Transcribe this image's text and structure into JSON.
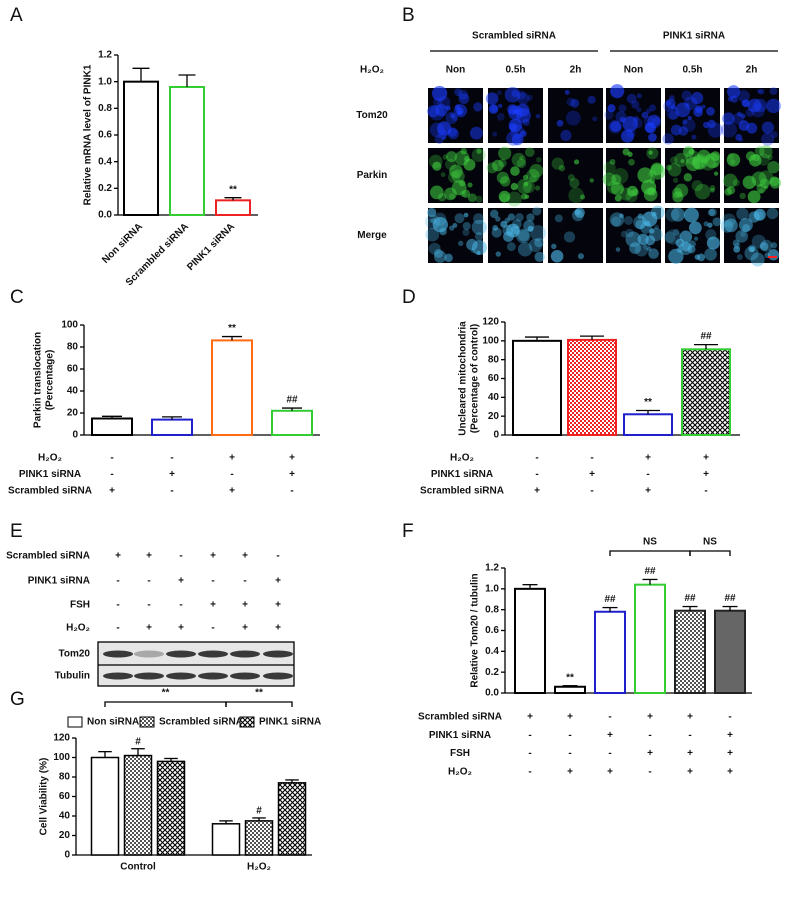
{
  "microscopy": {
    "panel": "B",
    "groups": [
      "Scrambled siRNA",
      "PINK1 siRNA"
    ],
    "treatment_label": "H₂O₂",
    "timepoints": [
      "Non",
      "0.5h",
      "2h",
      "Non",
      "0.5h",
      "2h"
    ],
    "rows": [
      "Tom20",
      "Parkin",
      "Merge"
    ]
  },
  "blot": {
    "panel": "E",
    "conditions": [
      {
        "name": "Scrambled siRNA",
        "values": [
          "+",
          "+",
          "-",
          "+",
          "+",
          "-"
        ]
      },
      {
        "name": "PINK1 siRNA",
        "values": [
          "-",
          "-",
          "+",
          "-",
          "-",
          "+"
        ]
      },
      {
        "name": "FSH",
        "values": [
          "-",
          "-",
          "-",
          "+",
          "+",
          "+"
        ]
      },
      {
        "name": "H₂O₂",
        "values": [
          "-",
          "+",
          "+",
          "-",
          "+",
          "+"
        ]
      }
    ],
    "bands": [
      "Tom20",
      "Tubulin"
    ]
  },
  "chart_data": [
    {
      "type": "bar",
      "panel": "A",
      "ylabel": "Relative mRNA level of PINK1",
      "categories": [
        "Non siRNA",
        "Scrambled siRNA",
        "PINK1 siRNA"
      ],
      "values": [
        1.0,
        0.96,
        0.11
      ],
      "errors": [
        0.1,
        0.09,
        0.02
      ],
      "colors": [
        "#000000",
        "#33cc33",
        "#ee2222"
      ],
      "fills": [
        "white",
        "white",
        "white"
      ],
      "fill_colors": [
        "#ffffff",
        "#ffffff",
        "#ffffff"
      ],
      "annotations": [
        null,
        null,
        "**"
      ],
      "ylim": [
        0,
        1.2
      ],
      "yticks": [
        {
          "value": 0,
          "label": "0.0"
        },
        0.2,
        0.4,
        0.6,
        0.8,
        {
          "value": 1,
          "label": "1.0"
        },
        1.2
      ]
    },
    {
      "type": "bar",
      "panel": "C",
      "ylabel": [
        "Parkin translocation",
        "(Percentage)"
      ],
      "values": [
        15,
        14,
        86,
        22
      ],
      "errors": [
        2,
        2.5,
        3.5,
        2.5
      ],
      "colors": [
        "#000000",
        "#1f1fcc",
        "#ff6a13",
        "#33cc33"
      ],
      "fills": [
        "white",
        "white",
        "white",
        "white"
      ],
      "fill_colors": [
        "#ffffff",
        "#ffffff",
        "#ffffff",
        "#ffffff"
      ],
      "annotations": [
        null,
        null,
        "**",
        "##"
      ],
      "conditions": [
        {
          "name": "H₂O₂",
          "values": [
            "-",
            "-",
            "+",
            "+"
          ]
        },
        {
          "name": "PINK1 siRNA",
          "values": [
            "-",
            "+",
            "-",
            "+"
          ]
        },
        {
          "name": "Scrambled siRNA",
          "values": [
            "+",
            "-",
            "+",
            "-"
          ]
        }
      ],
      "ylim": [
        0,
        100
      ],
      "yticks": [
        0,
        20,
        40,
        60,
        80,
        100
      ]
    },
    {
      "type": "bar",
      "panel": "D",
      "ylabel": [
        "Uncleared mitochondria",
        "(Percentage of control)"
      ],
      "values": [
        100,
        101,
        22,
        91
      ],
      "errors": [
        4,
        4,
        4,
        5
      ],
      "colors": [
        "#000000",
        "#ee2222",
        "#1f1fcc",
        "#33cc33"
      ],
      "fills": [
        "white",
        "checker",
        "white",
        "crosshatch"
      ],
      "fill_colors": [
        "#ffffff",
        "#ee2222",
        "#ffffff",
        "#000000"
      ],
      "annotations": [
        null,
        null,
        "**",
        "##"
      ],
      "conditions": [
        {
          "name": "H₂O₂",
          "values": [
            "-",
            "-",
            "+",
            "+"
          ]
        },
        {
          "name": "PINK1 siRNA",
          "values": [
            "-",
            "+",
            "-",
            "+"
          ]
        },
        {
          "name": "Scrambled siRNA",
          "values": [
            "+",
            "-",
            "+",
            "-"
          ]
        }
      ],
      "ylim": [
        0,
        120
      ],
      "yticks": [
        0,
        20,
        40,
        60,
        80,
        100,
        120
      ]
    },
    {
      "type": "bar",
      "panel": "F",
      "ylabel": "Relative Tom20 / tubulin",
      "values": [
        1.0,
        0.06,
        0.78,
        1.04,
        0.79,
        0.79
      ],
      "errors": [
        0.04,
        0.01,
        0.04,
        0.05,
        0.04,
        0.04
      ],
      "colors": [
        "#000000",
        "#000000",
        "#1f1fcc",
        "#33cc33",
        "#222222",
        "#222222"
      ],
      "fills": [
        "white",
        "white",
        "white",
        "white",
        "checker",
        "solid"
      ],
      "fill_colors": [
        "#ffffff",
        "#ffffff",
        "#ffffff",
        "#ffffff",
        "#555555",
        "#666666"
      ],
      "annotations": [
        null,
        "**",
        "##",
        "##",
        "##",
        "##"
      ],
      "brackets": [
        {
          "from": 2,
          "to": 4,
          "label": "NS"
        },
        {
          "from": 4,
          "to": 5,
          "label": "NS"
        }
      ],
      "conditions": [
        {
          "name": "Scrambled siRNA",
          "values": [
            "+",
            "+",
            "-",
            "+",
            "+",
            "-"
          ]
        },
        {
          "name": "PINK1 siRNA",
          "values": [
            "-",
            "-",
            "+",
            "-",
            "-",
            "+"
          ]
        },
        {
          "name": "FSH",
          "values": [
            "-",
            "-",
            "-",
            "+",
            "+",
            "+"
          ]
        },
        {
          "name": "H₂O₂",
          "values": [
            "-",
            "+",
            "+",
            "-",
            "+",
            "+"
          ]
        }
      ],
      "ylim": [
        0,
        1.2
      ],
      "yticks": [
        {
          "value": 0,
          "label": "0.0"
        },
        0.2,
        0.4,
        0.6,
        0.8,
        {
          "value": 1,
          "label": "1.0"
        },
        1.2
      ]
    },
    {
      "type": "grouped_bar",
      "panel": "G",
      "ylabel": "Cell Viability (%)",
      "categories": [
        "Control",
        "H₂O₂"
      ],
      "series": [
        {
          "name": "Non siRNA",
          "color": "#000000",
          "fill": "white",
          "fill_color": "#ffffff",
          "values": [
            100,
            32
          ],
          "errors": [
            6,
            3
          ],
          "annotations": [
            null,
            null
          ]
        },
        {
          "name": "Scrambled siRNA",
          "color": "#000000",
          "fill": "checker",
          "fill_color": "#555555",
          "values": [
            102,
            35
          ],
          "errors": [
            7,
            3
          ],
          "annotations": [
            "#",
            "#"
          ]
        },
        {
          "name": "PINK1 siRNA",
          "color": "#000000",
          "fill": "crosshatch",
          "fill_color": "#000000",
          "values": [
            96,
            74
          ],
          "errors": [
            3,
            3
          ],
          "annotations": [
            null,
            null
          ]
        }
      ],
      "brackets": [
        {
          "from": {
            "group": 0,
            "series": 0
          },
          "to": {
            "group": 1,
            "series": 0
          },
          "label": "**"
        },
        {
          "from": {
            "group": 1,
            "series": 0
          },
          "to": {
            "group": 1,
            "series": 2
          },
          "label": "**"
        }
      ],
      "ylim": [
        0,
        120
      ],
      "yticks": [
        0,
        20,
        40,
        60,
        80,
        100,
        120
      ]
    }
  ]
}
